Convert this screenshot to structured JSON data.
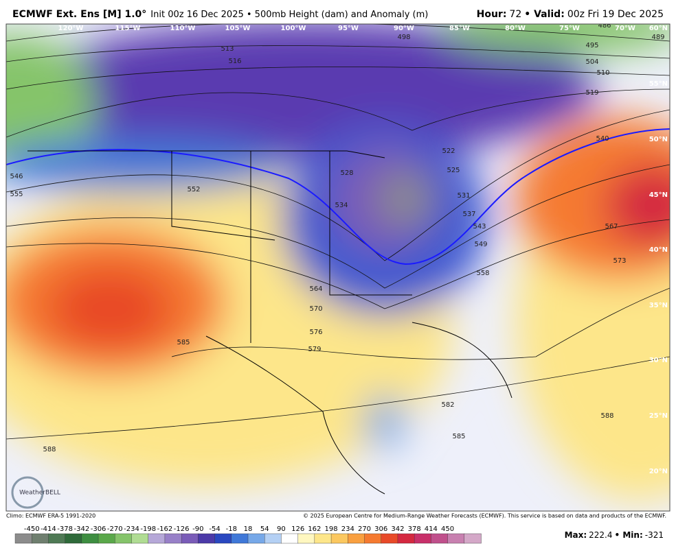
{
  "header": {
    "model": "ECMWF Ext. Ens [M] 1.0°",
    "init": "Init 00z 16 Dec 2025 • 500mb Height (dam) and Anomaly (m)",
    "hour_label": "Hour:",
    "hour": "72",
    "valid_label": "• Valid:",
    "valid": "00z Fri 19 Dec 2025"
  },
  "map": {
    "longitudes": [
      "120°W",
      "115°W",
      "110°W",
      "105°W",
      "100°W",
      "95°W",
      "90°W",
      "85°W",
      "80°W",
      "75°W",
      "70°W"
    ],
    "latitudes": [
      "60°N",
      "55°N",
      "50°N",
      "45°N",
      "40°N",
      "35°N",
      "30°N",
      "25°N",
      "20°N"
    ],
    "contour_labels": [
      498,
      513,
      516,
      495,
      504,
      510,
      519,
      540,
      546,
      555,
      552,
      528,
      534,
      522,
      525,
      531,
      537,
      543,
      549,
      558,
      564,
      570,
      576,
      579,
      585,
      573,
      582,
      585,
      588,
      588,
      567,
      486,
      489
    ],
    "logo": "WeatherBELL"
  },
  "footer": {
    "climo": "Climo: ECMWF ERA-5 1991-2020",
    "copyright": "© 2025 European Centre for Medium-Range Weather Forecasts (ECMWF). This service is based on data and products of the ECMWF.",
    "max_label": "Max:",
    "max": 222.4,
    "min_label": "• Min:",
    "min": -321.0
  },
  "legend": {
    "ticks": [
      -450,
      -414,
      -378,
      -342,
      -306,
      -270,
      -234,
      -198,
      -162,
      -126,
      -90,
      -54,
      -18,
      18,
      54,
      90,
      126,
      162,
      198,
      234,
      270,
      306,
      342,
      378,
      414,
      450
    ],
    "colors": [
      "#8c8c8c",
      "#6f7f6f",
      "#4f7a55",
      "#2f6a3a",
      "#3e8e41",
      "#5aa84a",
      "#85c46a",
      "#b0dc93",
      "#b6a8d8",
      "#9880c8",
      "#7a5cb8",
      "#4c3aa8",
      "#2a48c0",
      "#3f78d8",
      "#76a8e8",
      "#b4d0f4",
      "#ffffff",
      "#fff7c0",
      "#fde68a",
      "#fbc860",
      "#f9a040",
      "#f57a30",
      "#e84a28",
      "#d42840",
      "#c8306a",
      "#c0508c",
      "#c880b0",
      "#d4a8c8"
    ]
  }
}
